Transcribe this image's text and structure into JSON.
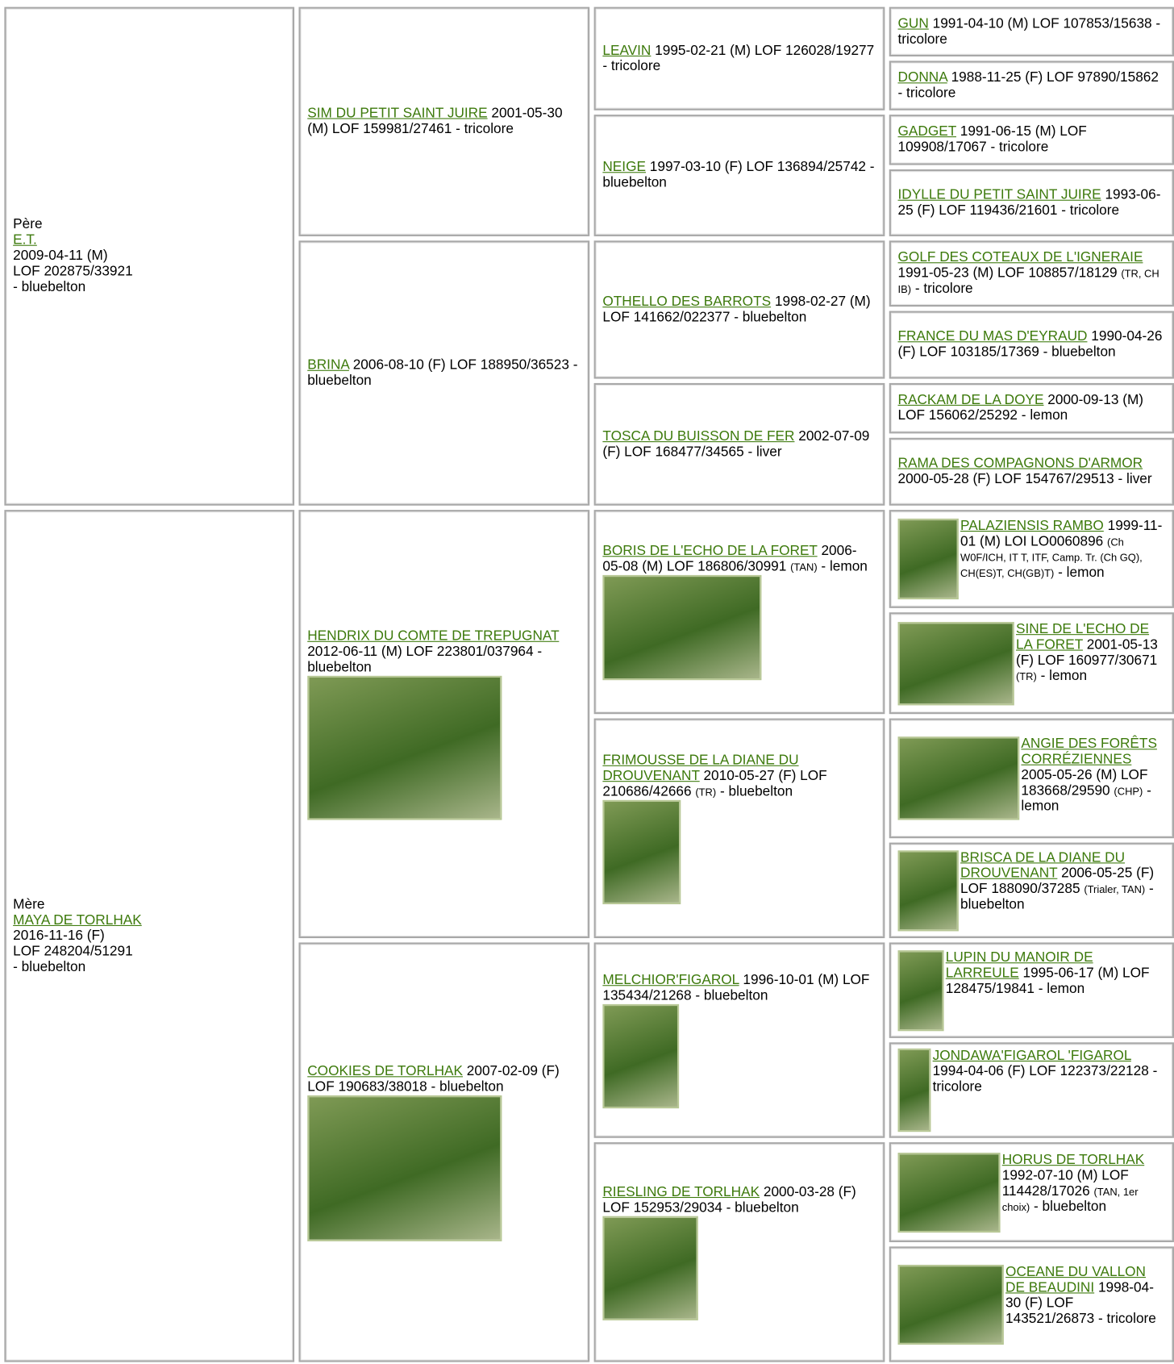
{
  "parents": [
    {
      "label": "Père",
      "name": "E.T.",
      "lines": [
        "2009-04-11 (M)",
        "LOF 202875/33921",
        "- bluebelton"
      ]
    },
    {
      "label": "Mère",
      "name": "MAYA DE TORLHAK",
      "lines": [
        "2016-11-16 (F)",
        "LOF 248204/51291",
        "- bluebelton"
      ]
    }
  ],
  "grandparents": [
    {
      "name": "SIM DU PETIT SAINT JUIRE",
      "info": "2001-05-30 (M) LOF 159981/27461 - tricolore"
    },
    {
      "name": "BRINA",
      "info": "2006-08-10 (F) LOF 188950/36523 - bluebelton"
    },
    {
      "name": "HENDRIX DU COMTE DE TREPUGNAT",
      "info": "2012-06-11 (M) LOF 223801/037964 - bluebelton",
      "photo": true
    },
    {
      "name": "COOKIES DE TORLHAK",
      "info": "2007-02-09 (F) LOF 190683/38018 - bluebelton",
      "photo": true
    }
  ],
  "great_grandparents": [
    {
      "name": "LEAVIN",
      "info": "1995-02-21 (M) LOF 126028/19277 - tricolore"
    },
    {
      "name": "NEIGE",
      "info": "1997-03-10 (F) LOF 136894/25742 - bluebelton"
    },
    {
      "name": "OTHELLO DES BARROTS",
      "info": "1998-02-27 (M) LOF 141662/022377 - bluebelton"
    },
    {
      "name": "TOSCA DU BUISSON DE FER",
      "info": "2002-07-09 (F) LOF 168477/34565 - liver"
    },
    {
      "name": "BORIS DE L'ECHO DE LA FORET",
      "info": "2006-05-08 (M) LOF 186806/30991",
      "titles": "(TAN)",
      "tail": "- lemon",
      "photo": true
    },
    {
      "name": "FRIMOUSSE DE LA DIANE DU DROUVENANT",
      "info": "2010-05-27 (F) LOF 210686/42666",
      "titles": "(TR)",
      "tail": "- bluebelton",
      "photo": true
    },
    {
      "name": "MELCHIOR'FIGAROL",
      "info": "1996-10-01 (M) LOF 135434/21268 - bluebelton",
      "photo": true
    },
    {
      "name": "RIESLING DE TORLHAK",
      "info": "2000-03-28 (F) LOF 152953/29034 - bluebelton",
      "photo": true
    }
  ],
  "great_great_grandparents": [
    {
      "name": "GUN",
      "info": "1991-04-10 (M) LOF 107853/15638 - tricolore"
    },
    {
      "name": "DONNA",
      "info": "1988-11-25 (F) LOF 97890/15862 - tricolore"
    },
    {
      "name": "GADGET",
      "info": "1991-06-15 (M) LOF 109908/17067 - tricolore"
    },
    {
      "name": "IDYLLE DU PETIT SAINT JUIRE",
      "info": "1993-06-25 (F) LOF 119436/21601 - tricolore"
    },
    {
      "name": "GOLF DES COTEAUX DE L'IGNERAIE",
      "info": "1991-05-23 (M) LOF 108857/18129",
      "titles": "(TR, CH IB)",
      "tail": "- tricolore"
    },
    {
      "name": "FRANCE DU MAS D'EYRAUD",
      "info": "1990-04-26 (F) LOF 103185/17369 - bluebelton"
    },
    {
      "name": "RACKAM DE LA DOYE",
      "info": "2000-09-13 (M) LOF 156062/25292 - lemon"
    },
    {
      "name": "RAMA DES COMPAGNONS D'ARMOR",
      "info": "2000-05-28 (F) LOF 154767/29513 - liver"
    },
    {
      "name": "PALAZIENSIS RAMBO",
      "info": "1999-11-01 (M) LOI LO0060896",
      "titles": "(Ch W0F/ICH, IT T, ITF, Camp. Tr. (Ch GQ), CH(ES)T, CH(GB)T)",
      "tail": "- lemon",
      "photo": true
    },
    {
      "name": "SINE DE L'ECHO DE LA FORET",
      "info": "2001-05-13 (F) LOF 160977/30671",
      "titles": "(TR)",
      "tail": "- lemon",
      "photo": true
    },
    {
      "name": "ANGIE DES FORÊTS CORRÉZIENNES",
      "info": "2005-05-26 (M) LOF 183668/29590",
      "titles": "(CHP)",
      "tail": "- lemon",
      "photo": true
    },
    {
      "name": "BRISCA DE LA DIANE DU DROUVENANT",
      "info": "2006-05-25 (F) LOF 188090/37285",
      "titles": "(Trialer, TAN)",
      "tail": "- bluebelton",
      "photo": true
    },
    {
      "name": "LUPIN DU MANOIR DE LARREULE",
      "info": "1995-06-17 (M) LOF 128475/19841 - lemon",
      "photo": true
    },
    {
      "name": "JONDAWA'FIGAROL 'FIGAROL",
      "info": "1994-04-06 (F) LOF 122373/22128 - tricolore",
      "photo": true
    },
    {
      "name": "HORUS DE TORLHAK",
      "info": "1992-07-10 (M) LOF 114428/17026",
      "titles": "(TAN, 1er choix)",
      "tail": "- bluebelton",
      "photo": true
    },
    {
      "name": "OCEANE DU VALLON DE BEAUDINI",
      "info": "1998-04-30 (F) LOF 143521/26873 - tricolore",
      "photo": true
    }
  ]
}
